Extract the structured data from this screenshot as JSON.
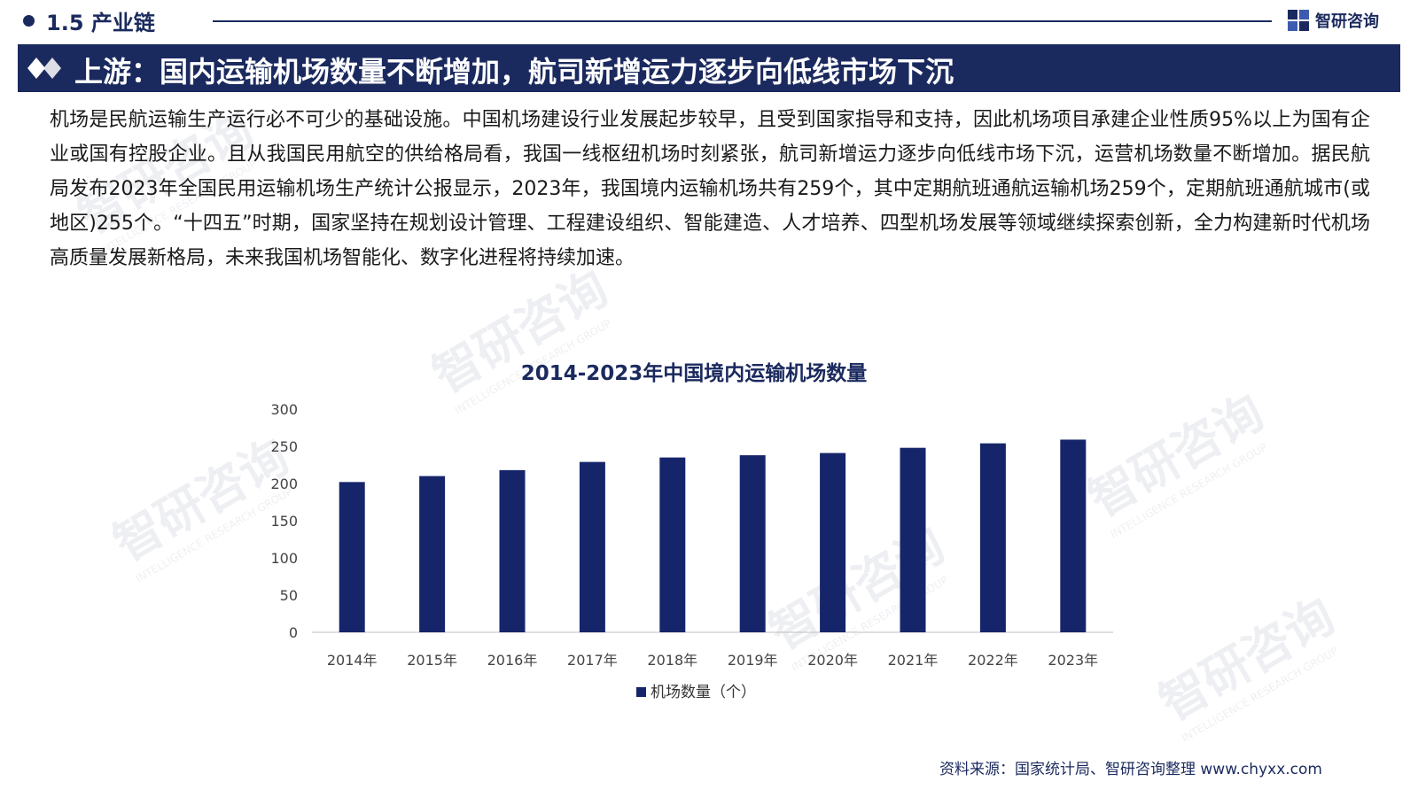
{
  "header": {
    "section_label": "1.5 产业链",
    "brand_name": "智研咨询",
    "logo_icon": "chyxx-logo-icon"
  },
  "banner": {
    "title": "上游：国内运输机场数量不断增加，航司新增运力逐步向低线市场下沉",
    "icon": "double-diamond-icon"
  },
  "body": {
    "paragraph": "机场是民航运输生产运行必不可少的基础设施。中国机场建设行业发展起步较早，且受到国家指导和支持，因此机场项目承建企业性质95%以上为国有企业或国有控股企业。且从我国民用航空的供给格局看，我国一线枢纽机场时刻紧张，航司新增运力逐步向低线市场下沉，运营机场数量不断增加。据民航局发布2023年全国民用运输机场生产统计公报显示，2023年，我国境内运输机场共有259个，其中定期航班通航运输机场259个，定期航班通航城市(或地区)255个。“十四五”时期，国家坚持在规划设计管理、工程建设组织、智能建造、人才培养、四型机场发展等领域继续探索创新，全力构建新时代机场高质量发展新格局，未来我国机场智能化、数字化进程将持续加速。"
  },
  "chart_data": {
    "type": "bar",
    "title": "2014-2023年中国境内运输机场数量",
    "categories": [
      "2014年",
      "2015年",
      "2016年",
      "2017年",
      "2018年",
      "2019年",
      "2020年",
      "2021年",
      "2022年",
      "2023年"
    ],
    "series": [
      {
        "name": "机场数量（个）",
        "values": [
          202,
          210,
          218,
          229,
          235,
          238,
          241,
          248,
          254,
          259
        ]
      }
    ],
    "yticks": [
      0,
      50,
      100,
      150,
      200,
      250,
      300
    ],
    "ylim": [
      0,
      300
    ],
    "xlabel": "",
    "ylabel": "",
    "grid": false,
    "legend": "bottom-center",
    "bar_color": "#16256a"
  },
  "footer": {
    "source": "资料来源：国家统计局、智研咨询整理  www.chyxx.com"
  },
  "watermark": {
    "cn": "智研咨询",
    "en": "INTELLIGENCE RESEARCH GROUP"
  }
}
